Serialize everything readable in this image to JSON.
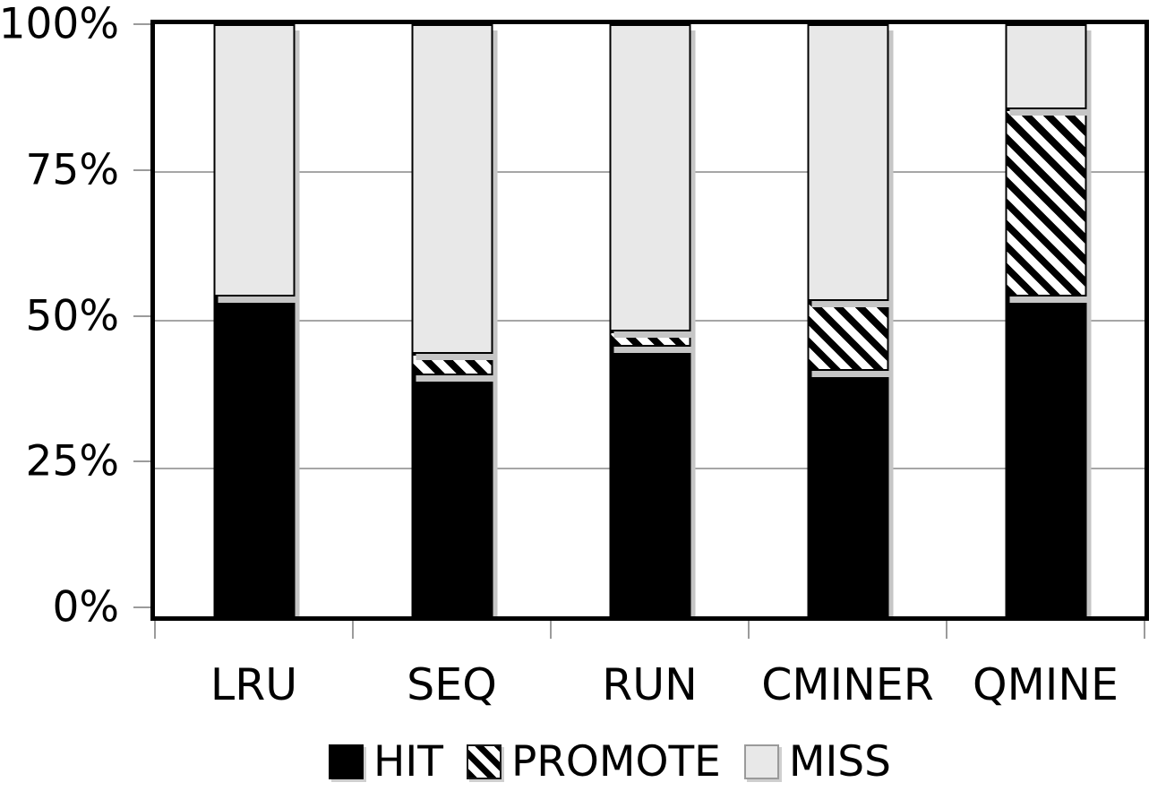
{
  "chart_data": {
    "type": "bar",
    "stacked": true,
    "title": "",
    "xlabel": "",
    "ylabel": "",
    "ylim": [
      0,
      100
    ],
    "grid": "horizontal",
    "legend_position": "bottom",
    "categories": [
      "LRU",
      "SEQ",
      "RUN",
      "CMINER",
      "QMINE"
    ],
    "yticks": [
      {
        "label": "0%",
        "value": 0
      },
      {
        "label": "25%",
        "value": 25
      },
      {
        "label": "50%",
        "value": 50
      },
      {
        "label": "75%",
        "value": 75
      },
      {
        "label": "100%",
        "value": 100
      }
    ],
    "series": [
      {
        "name": "HIT",
        "style": "solid-black",
        "values": [
          54.0,
          40.7,
          45.5,
          41.5,
          54.0
        ]
      },
      {
        "name": "PROMOTE",
        "style": "diagonal-hatch",
        "values": [
          0.0,
          3.7,
          2.6,
          11.7,
          31.6
        ]
      },
      {
        "name": "MISS",
        "style": "light-gray",
        "values": [
          46.0,
          55.6,
          51.9,
          46.8,
          14.4
        ]
      }
    ]
  },
  "legend": {
    "items": [
      {
        "label": "HIT",
        "swatch": "solid-black-swatch-icon",
        "style": "solid-black"
      },
      {
        "label": "PROMOTE",
        "swatch": "diagonal-hatch-swatch-icon",
        "style": "diagonal-hatch"
      },
      {
        "label": "MISS",
        "swatch": "light-gray-swatch-icon",
        "style": "light-gray"
      }
    ]
  },
  "colors": {
    "hit_fill": "#000000",
    "promote_hatch_fg": "#000000",
    "promote_hatch_bg": "#ffffff",
    "miss_fill": "#e8e8e8",
    "segment_border": "#000000",
    "plot_border": "#000000",
    "gridline": "#a6a6a6",
    "tick": "#9b9b9b",
    "bar_shadow": "#c6c6c6",
    "background": "#ffffff"
  }
}
